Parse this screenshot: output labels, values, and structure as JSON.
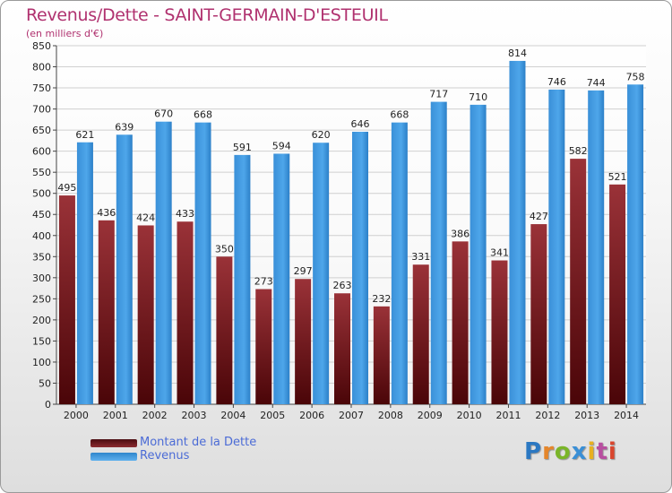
{
  "header": {
    "title": "Revenus/Dette - SAINT-GERMAIN-D'ESTEUIL",
    "subtitle": "(en milliers d'€)"
  },
  "chart_data": {
    "type": "bar",
    "categories": [
      "2000",
      "2001",
      "2002",
      "2003",
      "2004",
      "2005",
      "2006",
      "2007",
      "2008",
      "2009",
      "2010",
      "2011",
      "2012",
      "2013",
      "2014"
    ],
    "series": [
      {
        "name": "Montant de la Dette",
        "color": "#8b2a2f",
        "values": [
          495,
          436,
          424,
          433,
          350,
          273,
          297,
          263,
          232,
          331,
          386,
          341,
          427,
          582,
          521
        ]
      },
      {
        "name": "Revenus",
        "color": "#3f9ae0",
        "values": [
          621,
          639,
          670,
          668,
          591,
          594,
          620,
          646,
          668,
          717,
          710,
          814,
          746,
          744,
          758
        ]
      }
    ],
    "value_labels": {
      "Montant de la Dette": [
        "495",
        "436",
        "424",
        "433",
        "350",
        "273",
        "297",
        "263",
        "232",
        "331",
        "386",
        "341",
        "427",
        "582",
        "521"
      ],
      "Revenus": [
        "621",
        "639",
        "670",
        "668",
        "591",
        "594",
        "620",
        "646",
        "668",
        "717",
        "710",
        "814",
        "746",
        "744",
        "758"
      ]
    },
    "ylim": [
      0,
      850
    ],
    "yticks": [
      "0",
      "50",
      "100",
      "150",
      "200",
      "250",
      "300",
      "350",
      "400",
      "450",
      "500",
      "550",
      "600",
      "650",
      "700",
      "750",
      "800",
      "850"
    ],
    "grid": true,
    "legend_position": "bottom-left"
  },
  "logo": {
    "letters": [
      "P",
      "r",
      "o",
      "x",
      "i",
      "t",
      "i"
    ],
    "colors": [
      "#2b78c2",
      "#e5862b",
      "#7ab529",
      "#3a8fd6",
      "#e8b020",
      "#b84fa0",
      "#d9462e"
    ]
  }
}
